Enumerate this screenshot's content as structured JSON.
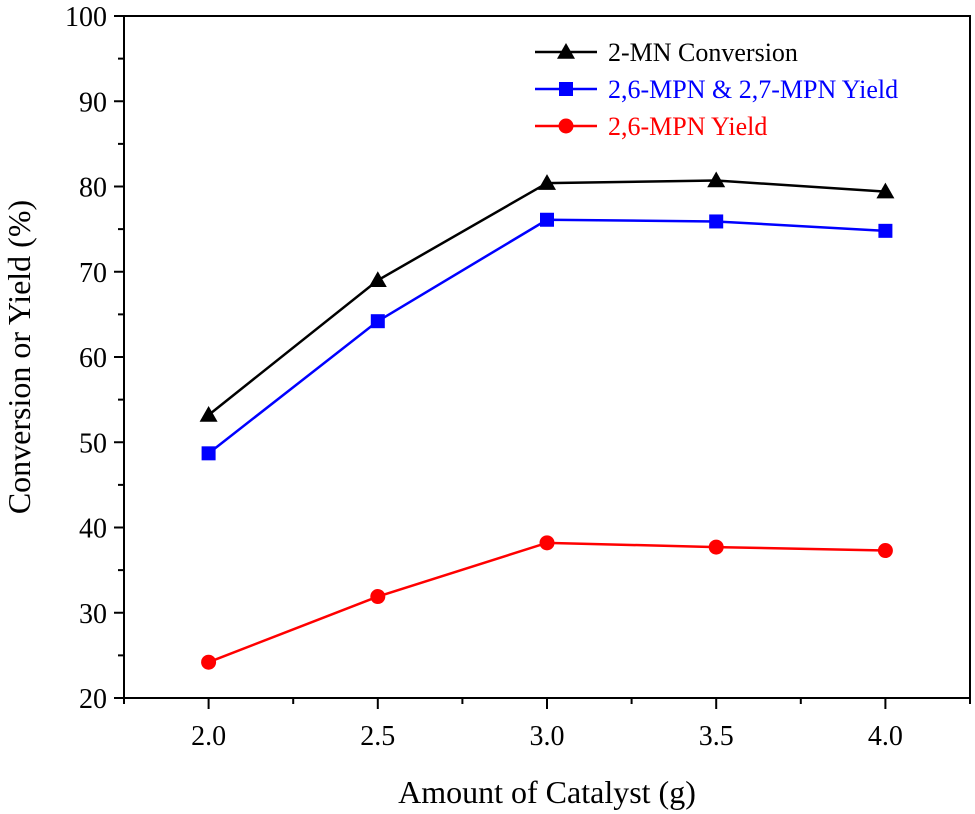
{
  "chart_data": {
    "type": "line",
    "title": "",
    "xlabel": "Amount of Catalyst (g)",
    "ylabel": "Conversion or Yield (%)",
    "x": [
      2.0,
      2.5,
      3.0,
      3.5,
      4.0
    ],
    "x_tick_labels": [
      "2.0",
      "2.5",
      "3.0",
      "3.5",
      "4.0"
    ],
    "y_tick_labels": [
      "20",
      "30",
      "40",
      "50",
      "60",
      "70",
      "80",
      "90",
      "100"
    ],
    "xlim": [
      1.75,
      4.25
    ],
    "ylim": [
      20,
      100
    ],
    "grid": false,
    "legend_position": "top-right",
    "series": [
      {
        "name": "2-MN Conversion",
        "color": "#000000",
        "marker": "triangle",
        "values": [
          53.2,
          69.0,
          80.4,
          80.7,
          79.4
        ]
      },
      {
        "name": "2,6-MPN & 2,7-MPN Yield",
        "color": "#0000ff",
        "marker": "square",
        "values": [
          48.7,
          64.2,
          76.1,
          75.9,
          74.8
        ]
      },
      {
        "name": "2,6-MPN Yield",
        "color": "#ff0000",
        "marker": "circle",
        "values": [
          24.2,
          31.9,
          38.2,
          37.7,
          37.3
        ]
      }
    ]
  }
}
